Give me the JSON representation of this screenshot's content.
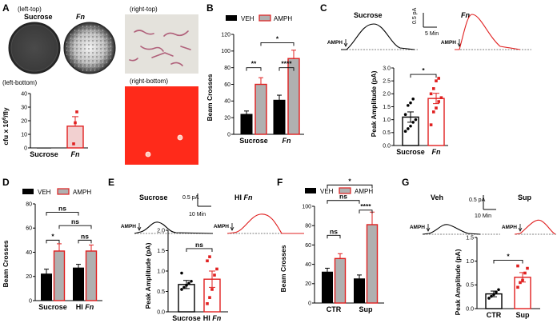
{
  "colors": {
    "veh": "#000000",
    "amph": "#e02020",
    "amph_fill": "#b0b0b0",
    "agar": "#ff2a1a"
  },
  "legend": {
    "veh": "VEH",
    "amph": "AMPH"
  },
  "trace_scale": {
    "y": "0.5 pA",
    "x": "10 Min",
    "stim": "AMPH"
  },
  "panelA": {
    "letter": "A",
    "left_top": "(left-top)",
    "left_bottom": "(left-bottom)",
    "right_top": "(right-top)",
    "right_bottom": "(right-bottom)",
    "plate_sucrose": "Sucrose",
    "plate_fn": "Fn",
    "chart_ylabel": "cfu x 10",
    "chart_ylabel_sup": "6",
    "chart_ylabel_tail": "/fly"
  },
  "panelB": {
    "letter": "B"
  },
  "panelC": {
    "letter": "C",
    "trace_left": "Sucrose",
    "trace_right": "Fn",
    "scale_y": "0.5 pA",
    "scale_x": "5 Min"
  },
  "panelD": {
    "letter": "D"
  },
  "panelE": {
    "letter": "E",
    "trace_left": "Sucrose",
    "trace_right": "HI Fn"
  },
  "panelF": {
    "letter": "F"
  },
  "panelG": {
    "letter": "G",
    "trace_left": "Veh",
    "trace_right": "Sup"
  },
  "chart_data": [
    {
      "id": "A",
      "type": "bar",
      "title": "",
      "xlabel": "",
      "ylabel": "cfu x 10^6/fly",
      "categories": [
        "Sucrose",
        "Fn"
      ],
      "category_italic": [
        false,
        true
      ],
      "values": [
        0.2,
        16
      ],
      "errors": [
        0.3,
        7
      ],
      "ylim": [
        0,
        40
      ],
      "yticks": [
        0,
        10,
        20,
        30,
        40
      ],
      "points": [
        [
          0.1,
          0.2,
          0.3
        ],
        [
          3,
          18.5,
          26.5
        ]
      ],
      "significance": []
    },
    {
      "id": "B",
      "type": "bar",
      "title": "",
      "xlabel": "",
      "ylabel": "Beam Crosses",
      "categories": [
        "Sucrose",
        "Fn"
      ],
      "category_italic": [
        false,
        true
      ],
      "series": [
        {
          "name": "VEH",
          "values": [
            24,
            41
          ],
          "errors": [
            4,
            6
          ]
        },
        {
          "name": "AMPH",
          "values": [
            60,
            91
          ],
          "errors": [
            8,
            10
          ]
        }
      ],
      "ylim": [
        0,
        120
      ],
      "yticks": [
        0,
        20,
        40,
        60,
        80,
        100,
        120
      ],
      "significance": [
        {
          "label": "**",
          "from": [
            0,
            0
          ],
          "to": [
            0,
            1
          ],
          "y": 80
        },
        {
          "label": "****",
          "from": [
            1,
            0
          ],
          "to": [
            1,
            1
          ],
          "y": 80
        },
        {
          "label": "*",
          "from": [
            0,
            1
          ],
          "to": [
            1,
            1
          ],
          "y": 110
        }
      ]
    },
    {
      "id": "C",
      "type": "bar",
      "title": "",
      "xlabel": "",
      "ylabel": "Peak Amplitude (pA)",
      "categories": [
        "Sucrose",
        "Fn"
      ],
      "category_italic": [
        false,
        true
      ],
      "values": [
        1.1,
        1.82
      ],
      "errors": [
        0.2,
        0.2
      ],
      "ylim": [
        0,
        3.0
      ],
      "yticks": [
        0.0,
        0.5,
        1.0,
        1.5,
        2.0,
        2.5,
        3.0
      ],
      "points": [
        [
          0.55,
          0.65,
          0.75,
          0.9,
          1.0,
          1.2,
          1.55,
          1.65,
          1.8
        ],
        [
          0.8,
          1.3,
          1.45,
          1.7,
          1.85,
          2.0,
          2.2,
          2.5,
          2.6
        ]
      ],
      "significance": [
        {
          "label": "*",
          "from": [
            0
          ],
          "to": [
            1
          ],
          "y": 2.75
        }
      ]
    },
    {
      "id": "D",
      "type": "bar",
      "title": "",
      "xlabel": "",
      "ylabel": "Beam Crosses",
      "categories": [
        "Sucrose",
        "HI Fn"
      ],
      "category_italic": [
        false,
        true
      ],
      "series": [
        {
          "name": "VEH",
          "values": [
            22,
            27
          ],
          "errors": [
            4,
            3
          ]
        },
        {
          "name": "AMPH",
          "values": [
            41,
            41
          ],
          "errors": [
            6,
            5
          ]
        }
      ],
      "ylim": [
        0,
        80
      ],
      "yticks": [
        0,
        20,
        40,
        60,
        80
      ],
      "significance": [
        {
          "label": "*",
          "from": [
            0,
            0
          ],
          "to": [
            0,
            1
          ],
          "y": 50
        },
        {
          "label": "ns",
          "from": [
            1,
            0
          ],
          "to": [
            1,
            1
          ],
          "y": 50
        },
        {
          "label": "ns",
          "from": [
            0,
            1
          ],
          "to": [
            1,
            1
          ],
          "y": 62
        },
        {
          "label": "ns",
          "from": [
            0,
            0
          ],
          "to": [
            1,
            0
          ],
          "y": 73
        }
      ]
    },
    {
      "id": "E",
      "type": "bar",
      "title": "",
      "xlabel": "",
      "ylabel": "Peak Amplitude (pA)",
      "categories": [
        "Sucrose",
        "HI Fn"
      ],
      "category_italic": [
        false,
        true
      ],
      "values": [
        0.67,
        0.8
      ],
      "errors": [
        0.1,
        0.2
      ],
      "ylim": [
        0,
        2.0
      ],
      "yticks": [
        0.0,
        0.5,
        1.0,
        1.5,
        2.0
      ],
      "points": [
        [
          0.55,
          0.6,
          0.65,
          0.7,
          0.75,
          0.95
        ],
        [
          0.2,
          0.35,
          0.55,
          0.9,
          1.05,
          1.25,
          1.35
        ]
      ],
      "significance": [
        {
          "label": "ns",
          "from": [
            0
          ],
          "to": [
            1
          ],
          "y": 1.55
        }
      ]
    },
    {
      "id": "F",
      "type": "bar",
      "title": "",
      "xlabel": "",
      "ylabel": "Beam Crosses",
      "categories": [
        "CTR",
        "Sup"
      ],
      "category_italic": [
        false,
        false
      ],
      "series": [
        {
          "name": "VEH",
          "values": [
            32,
            25
          ],
          "errors": [
            4,
            4
          ]
        },
        {
          "name": "AMPH",
          "values": [
            46,
            81
          ],
          "errors": [
            5,
            13
          ]
        }
      ],
      "ylim": [
        0,
        100
      ],
      "yticks": [
        0,
        20,
        40,
        60,
        80,
        100
      ],
      "significance": [
        {
          "label": "ns",
          "from": [
            0,
            0
          ],
          "to": [
            0,
            1
          ],
          "y": 70
        },
        {
          "label": "****",
          "from": [
            1,
            0
          ],
          "to": [
            1,
            1
          ],
          "y": 96
        },
        {
          "label": "ns",
          "from": [
            0,
            0
          ],
          "to": [
            1,
            0
          ],
          "y": 106
        },
        {
          "label": "*",
          "from": [
            0,
            0
          ],
          "to": [
            1,
            1
          ],
          "y": 122
        }
      ]
    },
    {
      "id": "G",
      "type": "bar",
      "title": "",
      "xlabel": "",
      "ylabel": "Peak Amplitude (pA)",
      "categories": [
        "CTR",
        "Sup"
      ],
      "category_italic": [
        false,
        false
      ],
      "values": [
        0.31,
        0.66
      ],
      "errors": [
        0.06,
        0.1
      ],
      "ylim": [
        0,
        1.5
      ],
      "yticks": [
        0.0,
        0.5,
        1.0,
        1.5
      ],
      "points": [
        [
          0.22,
          0.26,
          0.3,
          0.35,
          0.4
        ],
        [
          0.45,
          0.55,
          0.6,
          0.75,
          0.85,
          0.9
        ]
      ],
      "significance": [
        {
          "label": "*",
          "from": [
            0
          ],
          "to": [
            1
          ],
          "y": 1.02
        }
      ]
    }
  ]
}
